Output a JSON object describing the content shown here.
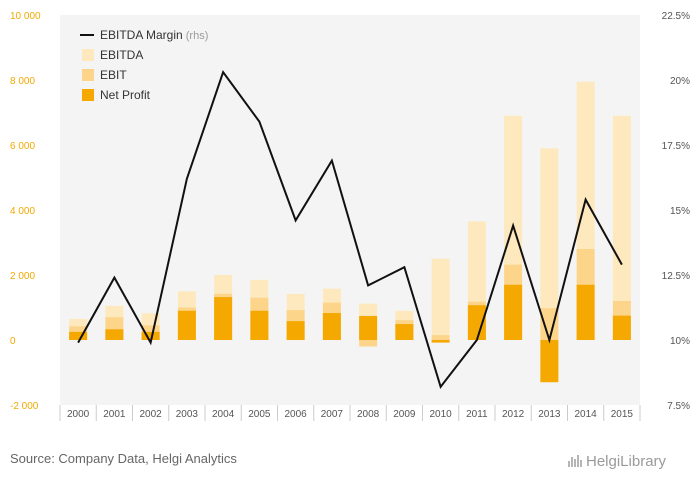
{
  "chart_data": {
    "type": "bar",
    "title": "",
    "categories": [
      "2000",
      "2001",
      "2002",
      "2003",
      "2004",
      "2005",
      "2006",
      "2007",
      "2008",
      "2009",
      "2010",
      "2011",
      "2012",
      "2013",
      "2014",
      "2015"
    ],
    "series": [
      {
        "name": "EBITDA",
        "type": "bar",
        "axis": "left",
        "color": "#fde9bd",
        "values": [
          650,
          1050,
          820,
          1500,
          2000,
          1850,
          1420,
          1580,
          1120,
          900,
          2500,
          3650,
          6900,
          5900,
          7950,
          6900
        ]
      },
      {
        "name": "EBIT",
        "type": "bar",
        "axis": "left",
        "color": "#fcd58a",
        "values": [
          420,
          700,
          450,
          1000,
          1420,
          1300,
          920,
          1150,
          -200,
          610,
          150,
          1180,
          2320,
          980,
          2800,
          1200
        ]
      },
      {
        "name": "Net Profit",
        "type": "bar",
        "axis": "left",
        "color": "#f5a800",
        "values": [
          250,
          330,
          250,
          900,
          1320,
          900,
          580,
          830,
          740,
          490,
          -80,
          1070,
          1700,
          -1300,
          1700,
          750
        ]
      },
      {
        "name": "EBITDA Margin",
        "type": "line",
        "axis": "right",
        "color": "#111111",
        "values": [
          9.9,
          12.4,
          9.9,
          16.2,
          20.3,
          18.4,
          14.6,
          16.9,
          12.1,
          12.8,
          8.2,
          10.0,
          14.4,
          10.0,
          15.4,
          12.9
        ]
      }
    ],
    "ylim_left": [
      -2000,
      10000
    ],
    "yticks_left": [
      "-2 000",
      "0",
      "2 000",
      "4 000",
      "6 000",
      "8 000",
      "10 000"
    ],
    "ylim_right": [
      7.5,
      22.5
    ],
    "yticks_right": [
      "7.5%",
      "10%",
      "12.5%",
      "15%",
      "17.5%",
      "20%",
      "22.5%"
    ],
    "legend": {
      "placement": "top-left",
      "items": [
        {
          "label": "EBITDA Margin",
          "suffix": "(rhs)",
          "marker": "line",
          "color": "#111111"
        },
        {
          "label": "EBITDA",
          "marker": "square",
          "color": "#fde9bd"
        },
        {
          "label": "EBIT",
          "marker": "square",
          "color": "#fcd58a"
        },
        {
          "label": "Net Profit",
          "marker": "square",
          "color": "#f5a800"
        }
      ]
    },
    "grid": false
  },
  "footer": {
    "source": "Source: Company Data, Helgi Analytics",
    "brand": "HelgiLibrary"
  },
  "colors": {
    "plot_bg": "#f4f4f4",
    "page_bg": "#ffffff",
    "left_axis_text": "#f2a900"
  }
}
